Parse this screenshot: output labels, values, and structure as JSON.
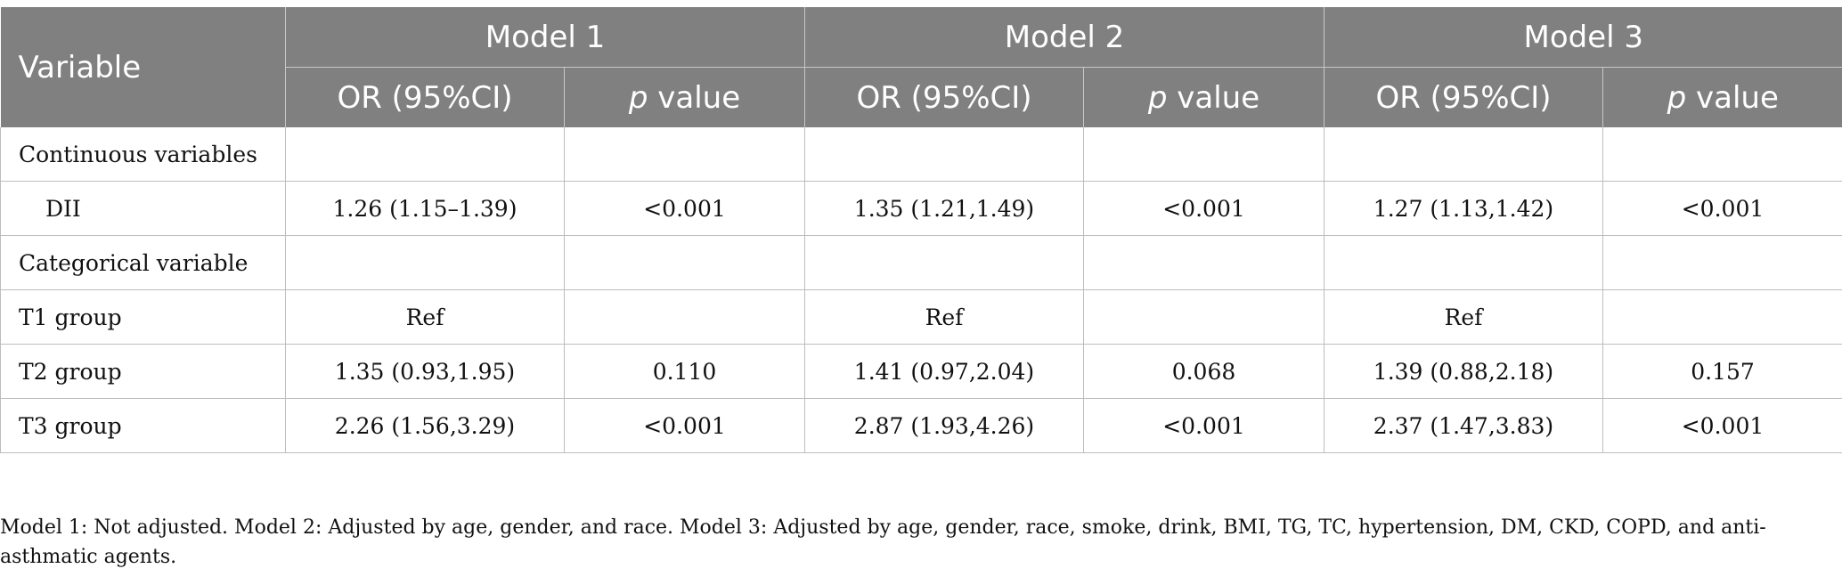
{
  "table": {
    "header": {
      "variable": "Variable",
      "models": [
        "Model 1",
        "Model 2",
        "Model 3"
      ],
      "or_label": "OR (95%CI)",
      "p_italic": "p",
      "p_rest": " value"
    },
    "rows": [
      {
        "label": "Continuous variables",
        "cells": [
          "",
          "",
          "",
          "",
          "",
          ""
        ]
      },
      {
        "label": "DII",
        "cells": [
          "1.26 (1.15–1.39)",
          "<0.001",
          "1.35 (1.21,1.49)",
          "<0.001",
          "1.27 (1.13,1.42)",
          "<0.001"
        ]
      },
      {
        "label": "Categorical variable",
        "cells": [
          "",
          "",
          "",
          "",
          "",
          ""
        ]
      },
      {
        "label": "T1 group",
        "cells": [
          "Ref",
          "",
          "Ref",
          "",
          "Ref",
          ""
        ]
      },
      {
        "label": "T2 group",
        "cells": [
          "1.35 (0.93,1.95)",
          "0.110",
          "1.41 (0.97,2.04)",
          "0.068",
          "1.39 (0.88,2.18)",
          "0.157"
        ]
      },
      {
        "label": "T3 group",
        "cells": [
          "2.26 (1.56,3.29)",
          "<0.001",
          "2.87 (1.93,4.26)",
          "<0.001",
          "2.37 (1.47,3.83)",
          "<0.001"
        ]
      }
    ]
  },
  "footnote": "Model 1: Not adjusted. Model 2: Adjusted by age, gender, and race. Model 3: Adjusted by age, gender, race, smoke, drink, BMI, TG, TC, hypertension, DM, CKD, COPD, and anti-asthmatic agents."
}
